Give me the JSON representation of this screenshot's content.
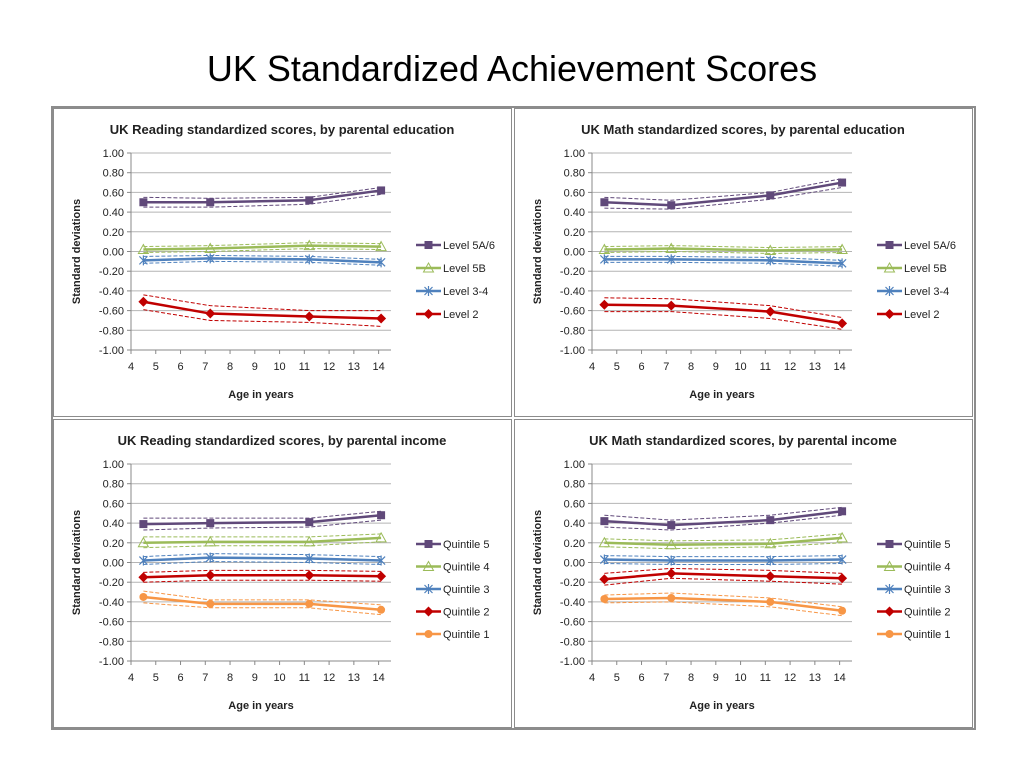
{
  "page": {
    "title": "UK Standardized Achievement Scores"
  },
  "chart_data": [
    {
      "type": "line",
      "title": "UK Reading standardized scores, by parental education",
      "xlabel": "Age in years",
      "ylabel": "Standard deviations",
      "xlim": [
        4,
        14.5
      ],
      "ylim": [
        -1,
        1
      ],
      "xticks": [
        "4",
        "5",
        "6",
        "7",
        "8",
        "9",
        "10",
        "11",
        "12",
        "13",
        "14"
      ],
      "yticks": [
        "1.00",
        "0.80",
        "0.60",
        "0.40",
        "0.20",
        "0.00",
        "-0.20",
        "-0.40",
        "-0.60",
        "-0.80",
        "-1.00"
      ],
      "grid": true,
      "legend": "right",
      "x": [
        4.5,
        7.2,
        11.2,
        14.1
      ],
      "series": [
        {
          "name": "Level 5A/6",
          "color": "#60497A",
          "marker": "square",
          "values": [
            0.5,
            0.5,
            0.52,
            0.62
          ],
          "upper": [
            0.55,
            0.54,
            0.55,
            0.65
          ],
          "lower": [
            0.45,
            0.45,
            0.48,
            0.58
          ]
        },
        {
          "name": "Level 5B",
          "color": "#9BBB59",
          "marker": "triangle",
          "values": [
            0.02,
            0.03,
            0.06,
            0.05
          ],
          "upper": [
            0.05,
            0.06,
            0.09,
            0.08
          ],
          "lower": [
            -0.01,
            0.0,
            0.03,
            0.02
          ]
        },
        {
          "name": "Level 3-4",
          "color": "#4F81BD",
          "marker": "asterisk",
          "values": [
            -0.09,
            -0.07,
            -0.08,
            -0.11
          ],
          "upper": [
            -0.05,
            -0.04,
            -0.05,
            -0.08
          ],
          "lower": [
            -0.12,
            -0.1,
            -0.11,
            -0.14
          ]
        },
        {
          "name": "Level 2",
          "color": "#C00000",
          "marker": "diamond",
          "values": [
            -0.51,
            -0.63,
            -0.66,
            -0.68
          ],
          "upper": [
            -0.44,
            -0.55,
            -0.6,
            -0.6
          ],
          "lower": [
            -0.59,
            -0.7,
            -0.72,
            -0.76
          ]
        }
      ]
    },
    {
      "type": "line",
      "title": "UK Math standardized scores, by parental education",
      "xlabel": "Age in years",
      "ylabel": "Standard deviations",
      "xlim": [
        4,
        14.5
      ],
      "ylim": [
        -1,
        1
      ],
      "xticks": [
        "4",
        "5",
        "6",
        "7",
        "8",
        "9",
        "10",
        "11",
        "12",
        "13",
        "14"
      ],
      "yticks": [
        "1.00",
        "0.80",
        "0.60",
        "0.40",
        "0.20",
        "0.00",
        "-0.20",
        "-0.40",
        "-0.60",
        "-0.80",
        "-1.00"
      ],
      "grid": true,
      "legend": "right",
      "x": [
        4.5,
        7.2,
        11.2,
        14.1
      ],
      "series": [
        {
          "name": "Level 5A/6",
          "color": "#60497A",
          "marker": "square",
          "values": [
            0.5,
            0.47,
            0.57,
            0.7
          ],
          "upper": [
            0.55,
            0.52,
            0.6,
            0.74
          ],
          "lower": [
            0.44,
            0.43,
            0.53,
            0.65
          ]
        },
        {
          "name": "Level 5B",
          "color": "#9BBB59",
          "marker": "triangle",
          "values": [
            0.02,
            0.03,
            0.01,
            0.02
          ],
          "upper": [
            0.05,
            0.06,
            0.04,
            0.05
          ],
          "lower": [
            -0.01,
            0.0,
            -0.02,
            -0.01
          ]
        },
        {
          "name": "Level 3-4",
          "color": "#4F81BD",
          "marker": "asterisk",
          "values": [
            -0.08,
            -0.08,
            -0.09,
            -0.12
          ],
          "upper": [
            -0.05,
            -0.05,
            -0.06,
            -0.09
          ],
          "lower": [
            -0.11,
            -0.11,
            -0.12,
            -0.15
          ]
        },
        {
          "name": "Level 2",
          "color": "#C00000",
          "marker": "diamond",
          "values": [
            -0.54,
            -0.55,
            -0.61,
            -0.73
          ],
          "upper": [
            -0.47,
            -0.48,
            -0.55,
            -0.67
          ],
          "lower": [
            -0.61,
            -0.61,
            -0.68,
            -0.79
          ]
        }
      ]
    },
    {
      "type": "line",
      "title": "UK Reading standardized scores, by parental income",
      "xlabel": "Age in years",
      "ylabel": "Standard deviations",
      "xlim": [
        4,
        14.5
      ],
      "ylim": [
        -1,
        1
      ],
      "xticks": [
        "4",
        "5",
        "6",
        "7",
        "8",
        "9",
        "10",
        "11",
        "12",
        "13",
        "14"
      ],
      "yticks": [
        "1.00",
        "0.80",
        "0.60",
        "0.40",
        "0.20",
        "0.00",
        "-0.20",
        "-0.40",
        "-0.60",
        "-0.80",
        "-1.00"
      ],
      "grid": true,
      "legend": "right",
      "x": [
        4.5,
        7.2,
        11.2,
        14.1
      ],
      "series": [
        {
          "name": "Quintile 5",
          "color": "#60497A",
          "marker": "square",
          "values": [
            0.39,
            0.4,
            0.41,
            0.48
          ],
          "upper": [
            0.45,
            0.45,
            0.45,
            0.52
          ],
          "lower": [
            0.33,
            0.35,
            0.36,
            0.43
          ]
        },
        {
          "name": "Quintile 4",
          "color": "#9BBB59",
          "marker": "triangle",
          "values": [
            0.2,
            0.21,
            0.21,
            0.25
          ],
          "upper": [
            0.26,
            0.26,
            0.26,
            0.29
          ],
          "lower": [
            0.15,
            0.17,
            0.17,
            0.21
          ]
        },
        {
          "name": "Quintile 3",
          "color": "#4F81BD",
          "marker": "asterisk",
          "values": [
            0.02,
            0.05,
            0.04,
            0.02
          ],
          "upper": [
            0.06,
            0.09,
            0.08,
            0.06
          ],
          "lower": [
            -0.02,
            0.01,
            0.0,
            -0.02
          ]
        },
        {
          "name": "Quintile 2",
          "color": "#C00000",
          "marker": "diamond",
          "values": [
            -0.15,
            -0.13,
            -0.13,
            -0.14
          ],
          "upper": [
            -0.1,
            -0.08,
            -0.08,
            -0.09
          ],
          "lower": [
            -0.2,
            -0.18,
            -0.18,
            -0.19
          ]
        },
        {
          "name": "Quintile 1",
          "color": "#F79646",
          "marker": "circle",
          "values": [
            -0.35,
            -0.42,
            -0.42,
            -0.48
          ],
          "upper": [
            -0.29,
            -0.38,
            -0.38,
            -0.43
          ],
          "lower": [
            -0.41,
            -0.46,
            -0.46,
            -0.53
          ]
        }
      ]
    },
    {
      "type": "line",
      "title": "UK Math standardized scores, by parental income",
      "xlabel": "Age in years",
      "ylabel": "Standard deviations",
      "xlim": [
        4,
        14.5
      ],
      "ylim": [
        -1,
        1
      ],
      "xticks": [
        "4",
        "5",
        "6",
        "7",
        "8",
        "9",
        "10",
        "11",
        "12",
        "13",
        "14"
      ],
      "yticks": [
        "1.00",
        "0.80",
        "0.60",
        "0.40",
        "0.20",
        "0.00",
        "-0.20",
        "-0.40",
        "-0.60",
        "-0.80",
        "-1.00"
      ],
      "grid": true,
      "legend": "right",
      "x": [
        4.5,
        7.2,
        11.2,
        14.1
      ],
      "series": [
        {
          "name": "Quintile 5",
          "color": "#60497A",
          "marker": "square",
          "values": [
            0.42,
            0.38,
            0.43,
            0.52
          ],
          "upper": [
            0.48,
            0.43,
            0.48,
            0.56
          ],
          "lower": [
            0.36,
            0.33,
            0.4,
            0.48
          ]
        },
        {
          "name": "Quintile 4",
          "color": "#9BBB59",
          "marker": "triangle",
          "values": [
            0.2,
            0.18,
            0.19,
            0.25
          ],
          "upper": [
            0.24,
            0.22,
            0.23,
            0.29
          ],
          "lower": [
            0.16,
            0.14,
            0.16,
            0.2
          ]
        },
        {
          "name": "Quintile 3",
          "color": "#4F81BD",
          "marker": "asterisk",
          "values": [
            0.03,
            0.02,
            0.02,
            0.03
          ],
          "upper": [
            0.07,
            0.06,
            0.06,
            0.07
          ],
          "lower": [
            -0.01,
            -0.02,
            -0.02,
            -0.01
          ]
        },
        {
          "name": "Quintile 2",
          "color": "#C00000",
          "marker": "diamond",
          "values": [
            -0.17,
            -0.11,
            -0.14,
            -0.16
          ],
          "upper": [
            -0.11,
            -0.06,
            -0.08,
            -0.11
          ],
          "lower": [
            -0.23,
            -0.16,
            -0.19,
            -0.22
          ]
        },
        {
          "name": "Quintile 1",
          "color": "#F79646",
          "marker": "circle",
          "values": [
            -0.37,
            -0.36,
            -0.4,
            -0.49
          ],
          "upper": [
            -0.33,
            -0.31,
            -0.36,
            -0.45
          ],
          "lower": [
            -0.41,
            -0.4,
            -0.45,
            -0.54
          ]
        }
      ]
    }
  ]
}
